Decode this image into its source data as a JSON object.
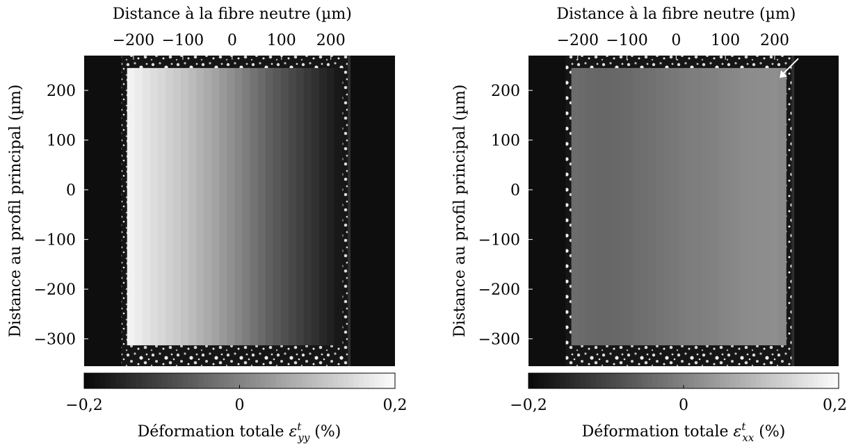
{
  "chart_data": [
    {
      "type": "heatmap",
      "top_axis_label": "Distance à la fibre neutre (µm)",
      "top_ticks": [
        {
          "value": -200,
          "label": "−200"
        },
        {
          "value": -100,
          "label": "−100"
        },
        {
          "value": 0,
          "label": "0"
        },
        {
          "value": 100,
          "label": "100"
        },
        {
          "value": 200,
          "label": "200"
        }
      ],
      "xlim": [
        -300,
        330
      ],
      "left_axis_label": "Distance au profil principal (µm)",
      "left_ticks": [
        {
          "value": 200,
          "label": "200"
        },
        {
          "value": 100,
          "label": "100"
        },
        {
          "value": 0,
          "label": "0"
        },
        {
          "value": -100,
          "label": "−100"
        },
        {
          "value": -200,
          "label": "−200"
        },
        {
          "value": -300,
          "label": "−300"
        }
      ],
      "ylim": [
        -355,
        270
      ],
      "map_x_range": [
        -213,
        223
      ],
      "map_y_range": [
        -313,
        245
      ],
      "strain_field": {
        "x_nodes": [
          -213,
          -160,
          -100,
          -40,
          20,
          80,
          140,
          200,
          223
        ],
        "values_at_nodes": [
          0.19,
          0.15,
          0.11,
          0.06,
          0.0,
          -0.06,
          -0.11,
          -0.16,
          -0.18
        ]
      },
      "colorbar": {
        "range": [
          -0.2,
          0.2
        ],
        "colormap": "gray",
        "ticks": [
          {
            "value": -0.2,
            "label": "−0,2"
          },
          {
            "value": 0,
            "label": "0"
          },
          {
            "value": 0.2,
            "label": "0,2"
          }
        ],
        "label_main": "Déformation totale ",
        "label_symbol": "ε",
        "label_sup": "t",
        "label_sub": "yy",
        "label_unit": " (%)"
      },
      "arrow": false
    },
    {
      "type": "heatmap",
      "top_axis_label": "Distance à la fibre neutre (µm)",
      "top_ticks": [
        {
          "value": -200,
          "label": "−200"
        },
        {
          "value": -100,
          "label": "−100"
        },
        {
          "value": 0,
          "label": "0"
        },
        {
          "value": 100,
          "label": "100"
        },
        {
          "value": 200,
          "label": "200"
        }
      ],
      "xlim": [
        -300,
        330
      ],
      "left_axis_label": "Distance au profil principal (µm)",
      "left_ticks": [
        {
          "value": 200,
          "label": "200"
        },
        {
          "value": 100,
          "label": "100"
        },
        {
          "value": 0,
          "label": "0"
        },
        {
          "value": -100,
          "label": "−100"
        },
        {
          "value": -200,
          "label": "−200"
        },
        {
          "value": -300,
          "label": "−300"
        }
      ],
      "ylim": [
        -355,
        270
      ],
      "map_x_range": [
        -213,
        223
      ],
      "map_y_range": [
        -313,
        245
      ],
      "strain_field": {
        "x_nodes": [
          -213,
          -160,
          -100,
          -40,
          20,
          80,
          140,
          200,
          223
        ],
        "values_at_nodes": [
          -0.035,
          -0.045,
          -0.04,
          -0.025,
          -0.01,
          0.0,
          0.015,
          0.02,
          0.01
        ]
      },
      "colorbar": {
        "range": [
          -0.2,
          0.2
        ],
        "colormap": "gray",
        "ticks": [
          {
            "value": -0.2,
            "label": "−0,2"
          },
          {
            "value": 0,
            "label": "0"
          },
          {
            "value": 0.2,
            "label": "0,2"
          }
        ],
        "label_main": "Déformation totale ",
        "label_symbol": "ε",
        "label_sup": "t",
        "label_sub": "xx",
        "label_unit": " (%)"
      },
      "arrow": true
    }
  ]
}
